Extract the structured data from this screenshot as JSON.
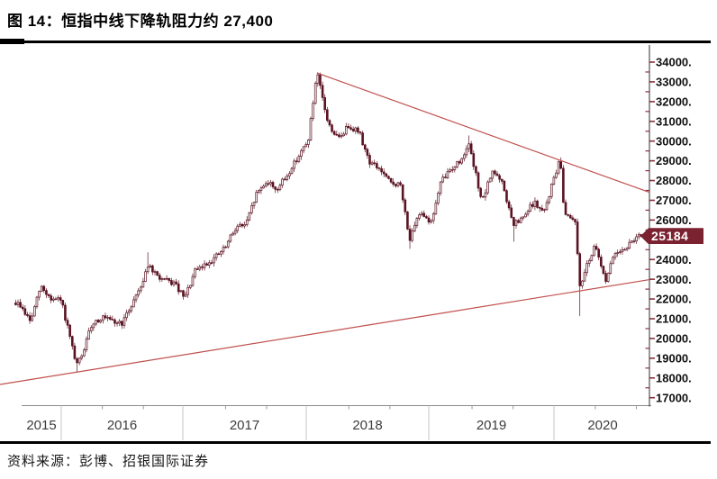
{
  "title": "图 14：恒指中线下降轨阻力约 27,400",
  "source": "资料来源：彭博、招银国际证券",
  "colors": {
    "candle": "#5a1322",
    "candle_hollow_fill": "#ffffff",
    "trendline": "#c0504d",
    "tag_bg": "#7b2231",
    "tag_text": "#ffffff",
    "y_tick": "#8a3040",
    "y_spine": "#3f3f3f",
    "x_axis": "#8a8a8a",
    "x_tick": "#9a9a9a",
    "separator": "#c6c6c6",
    "year_label": "#3c3c3c",
    "tick_label": "#101010"
  },
  "chart_data": {
    "type": "candlestick",
    "x_tick_labels": [
      "2015",
      "2016",
      "2017",
      "2018",
      "2019",
      "2020"
    ],
    "y_tick_labels": [
      "34000.",
      "33000.",
      "32000.",
      "31000.",
      "30000.",
      "29000.",
      "28000.",
      "27000.",
      "26000.",
      "25000.",
      "24000.",
      "23000.",
      "22000.",
      "21000.",
      "20000.",
      "19000.",
      "18000.",
      "17000."
    ],
    "y_axis": {
      "max": 34000,
      "min": 17000,
      "step": 1000
    },
    "monthly_close": [
      [
        2015.63,
        21800
      ],
      [
        2015.667,
        21671
      ],
      [
        2015.75,
        20846
      ],
      [
        2015.833,
        22640
      ],
      [
        2015.917,
        21996
      ],
      [
        2016.0,
        21914
      ],
      [
        2016.083,
        19683
      ],
      [
        2016.12,
        18600
      ],
      [
        2016.167,
        19112
      ],
      [
        2016.25,
        20777
      ],
      [
        2016.333,
        21067
      ],
      [
        2016.417,
        20815
      ],
      [
        2016.5,
        20794
      ],
      [
        2016.583,
        21891
      ],
      [
        2016.667,
        22977
      ],
      [
        2016.7,
        23750
      ],
      [
        2016.75,
        23297
      ],
      [
        2016.833,
        22935
      ],
      [
        2016.917,
        22790
      ],
      [
        2017.0,
        22001
      ],
      [
        2017.083,
        23361
      ],
      [
        2017.167,
        23741
      ],
      [
        2017.25,
        24112
      ],
      [
        2017.333,
        24615
      ],
      [
        2017.417,
        25661
      ],
      [
        2017.5,
        25765
      ],
      [
        2017.583,
        27324
      ],
      [
        2017.667,
        27970
      ],
      [
        2017.75,
        27554
      ],
      [
        2017.833,
        28246
      ],
      [
        2017.917,
        29177
      ],
      [
        2018.0,
        29919
      ],
      [
        2018.076,
        33400
      ],
      [
        2018.167,
        30845
      ],
      [
        2018.25,
        30093
      ],
      [
        2018.333,
        30808
      ],
      [
        2018.417,
        30469
      ],
      [
        2018.5,
        28955
      ],
      [
        2018.583,
        28583
      ],
      [
        2018.667,
        27889
      ],
      [
        2018.75,
        27789
      ],
      [
        2018.83,
        24980
      ],
      [
        2018.917,
        26507
      ],
      [
        2019.0,
        25846
      ],
      [
        2019.083,
        27942
      ],
      [
        2019.167,
        28633
      ],
      [
        2019.25,
        29051
      ],
      [
        2019.3,
        29963
      ],
      [
        2019.417,
        26901
      ],
      [
        2019.5,
        28543
      ],
      [
        2019.583,
        27778
      ],
      [
        2019.667,
        25725
      ],
      [
        2019.75,
        26092
      ],
      [
        2019.833,
        26907
      ],
      [
        2019.917,
        26346
      ],
      [
        2020.0,
        28189
      ],
      [
        2020.05,
        29056
      ],
      [
        2020.083,
        26313
      ],
      [
        2020.167,
        26130
      ],
      [
        2020.215,
        22300
      ],
      [
        2020.25,
        23603
      ],
      [
        2020.333,
        24644
      ],
      [
        2020.417,
        22961
      ],
      [
        2020.5,
        24427
      ],
      [
        2020.583,
        24595
      ],
      [
        2020.667,
        25177
      ],
      [
        2020.712,
        25184
      ]
    ],
    "extremes": [
      {
        "t": 2016.12,
        "low": 18278
      },
      {
        "t": 2016.7,
        "high": 24364
      },
      {
        "t": 2018.076,
        "high": 33484
      },
      {
        "t": 2018.83,
        "low": 24541
      },
      {
        "t": 2019.3,
        "high": 30280
      },
      {
        "t": 2019.667,
        "low": 24899
      },
      {
        "t": 2020.05,
        "high": 29174
      },
      {
        "t": 2020.215,
        "low": 21139
      }
    ],
    "trendlines": [
      {
        "name": "descending-resistance",
        "resistance_level_at_right": 27400,
        "points": [
          [
            2018.076,
            33450
          ],
          [
            2020.775,
            27400
          ]
        ]
      },
      {
        "name": "ascending-support",
        "points": [
          [
            2015.503,
            17670
          ],
          [
            2020.774,
            22980
          ]
        ]
      }
    ],
    "last": {
      "t": 2020.712,
      "price": 25184,
      "label": "25184"
    }
  }
}
